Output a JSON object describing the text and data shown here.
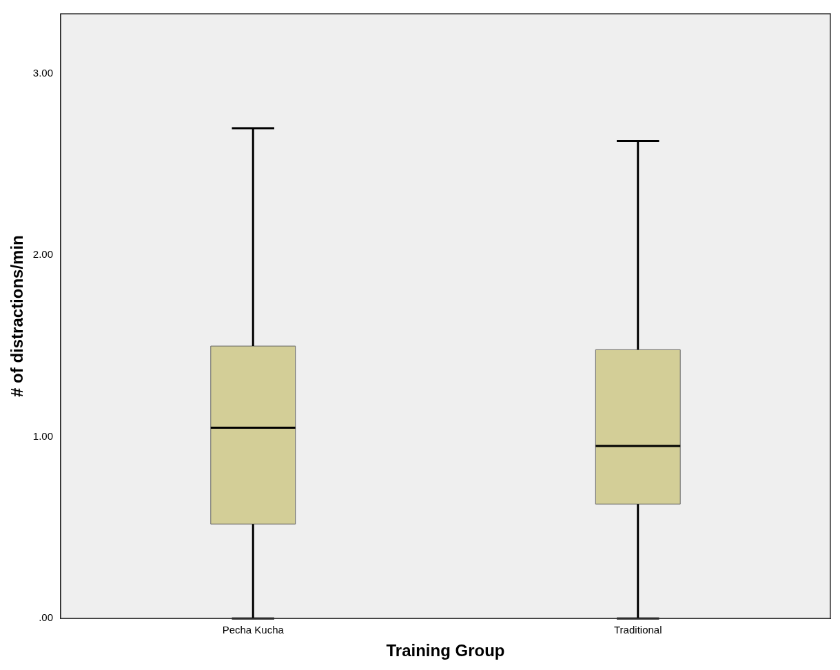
{
  "chart_data": {
    "type": "box",
    "xlabel": "Training Group",
    "ylabel": "# of distractions/min",
    "categories": [
      "Pecha Kucha",
      "Traditional"
    ],
    "color": "#d3ce97",
    "boxes": [
      {
        "low": 0,
        "q1": 0.52,
        "median": 1.05,
        "q3": 1.5,
        "high": 2.7
      },
      {
        "low": 0,
        "q1": 0.63,
        "median": 0.95,
        "q3": 1.48,
        "high": 2.63
      }
    ],
    "ylim": [
      0,
      3.33
    ],
    "yticks": [
      {
        "value": 0,
        "label": ".00"
      },
      {
        "value": 1,
        "label": "1.00"
      },
      {
        "value": 2,
        "label": "2.00"
      },
      {
        "value": 3,
        "label": "3.00"
      }
    ]
  }
}
